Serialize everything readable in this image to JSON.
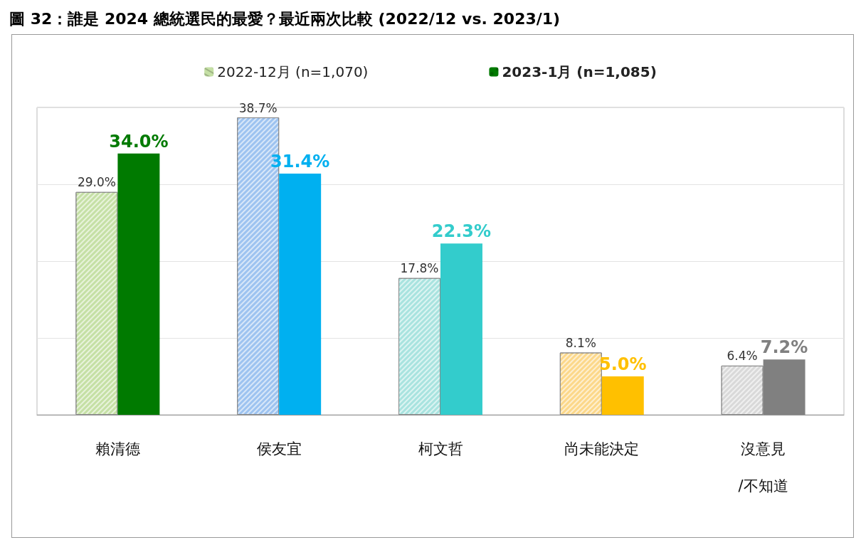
{
  "chart_data": {
    "type": "bar",
    "title": "圖 32：誰是 2024 總統選民的最愛？最近兩次比較 (2022/12 vs. 2023/1)",
    "categories": [
      "賴清德",
      "侯友宜",
      "柯文哲",
      "尚未能決定",
      "沒意見\n/不知道"
    ],
    "series": [
      {
        "name": "2022-12月 (n=1,070)",
        "color": "#c5e0a5",
        "colors": [
          "#c5e0a5",
          "#9dc3f0",
          "#a8e3df",
          "#fcd88a",
          "#d9d9d9"
        ],
        "values": [
          29.0,
          38.7,
          17.8,
          8.1,
          6.4
        ],
        "value_labels": [
          "29.0%",
          "38.7%",
          "17.8%",
          "8.1%",
          "6.4%"
        ]
      },
      {
        "name": "2023-1月 (n=1,085)",
        "color": "#007a00",
        "colors": [
          "#007a00",
          "#00b0f0",
          "#33cccc",
          "#ffc000",
          "#808080"
        ],
        "values": [
          34.0,
          31.4,
          22.3,
          5.0,
          7.2
        ],
        "value_labels": [
          "34.0%",
          "31.4%",
          "22.3%",
          "5.0%",
          "7.2%"
        ]
      }
    ],
    "tick_labels": "x",
    "grid": "y",
    "legend": "top"
  }
}
